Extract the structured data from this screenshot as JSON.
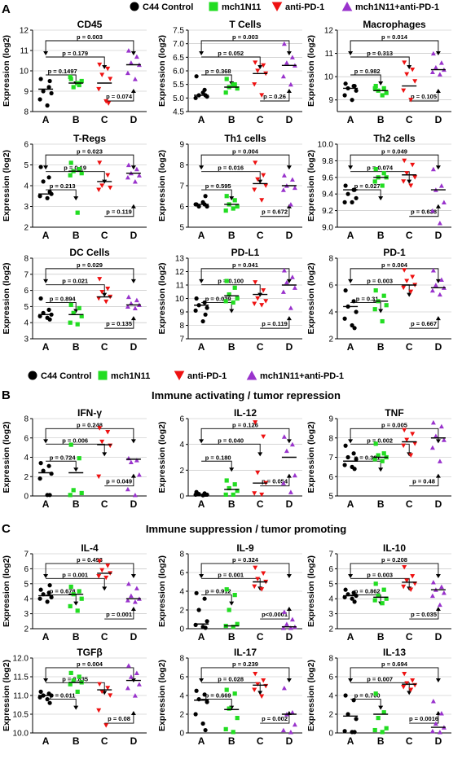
{
  "legend": {
    "items": [
      {
        "label": "C44 Control",
        "shape": "circle",
        "color": "#000000"
      },
      {
        "label": "mch1N11",
        "shape": "square",
        "color": "#22dd22"
      },
      {
        "label": "anti-PD-1",
        "shape": "tri-down",
        "color": "#ee1111"
      },
      {
        "label": "mch1N11+anti-PD-1",
        "shape": "tri-up",
        "color": "#9933cc"
      }
    ]
  },
  "sections": [
    {
      "letter": "A",
      "title": ""
    },
    {
      "letter": "B",
      "title": "Immune activating / tumor repression"
    },
    {
      "letter": "C",
      "title": "Immune suppression / tumor promoting"
    }
  ],
  "ylabel": "Expression (log2)",
  "groups": [
    "A",
    "B",
    "C",
    "D"
  ],
  "chart_data": [
    {
      "type": "scatter",
      "title": "CD45",
      "ylim": [
        8,
        12
      ],
      "yticks": [
        8,
        9,
        10,
        11,
        12
      ],
      "series": [
        {
          "values": [
            9.6,
            9.2,
            9.0,
            8.9,
            8.6,
            8.3,
            9.5
          ]
        },
        {
          "values": [
            9.6,
            9.3,
            9.2,
            9.5,
            9.7,
            9.4
          ]
        },
        {
          "values": [
            10.3,
            10.1,
            9.8,
            9.6,
            9.1,
            8.5,
            8.4
          ]
        },
        {
          "values": [
            11.0,
            10.7,
            10.4,
            10.3,
            9.9,
            9.6
          ]
        }
      ],
      "medians": [
        9.1,
        9.4,
        9.4,
        10.3
      ],
      "pvalues": [
        "p = 0.003",
        "p = 0.179",
        "p = 0.1497",
        "p = 0.074"
      ]
    },
    {
      "type": "scatter",
      "title": "T Cells",
      "ylim": [
        4.5,
        7.5
      ],
      "yticks": [
        4.5,
        5.0,
        5.5,
        6.0,
        6.5,
        7.0,
        7.5
      ],
      "series": [
        {
          "values": [
            5.8,
            5.3,
            5.1,
            5.05,
            5.0,
            5.2,
            5.1
          ]
        },
        {
          "values": [
            5.7,
            5.5,
            5.4,
            5.35,
            5.2,
            5.5
          ]
        },
        {
          "values": [
            6.3,
            6.2,
            6.0,
            5.9,
            5.5,
            5.1
          ]
        },
        {
          "values": [
            7.0,
            6.5,
            6.3,
            6.2,
            5.8,
            5.5
          ]
        }
      ],
      "medians": [
        5.1,
        5.4,
        5.9,
        6.2
      ],
      "pvalues": [
        "p = 0.003",
        "p = 0.052",
        "p = 0.368",
        "p = 0.26"
      ]
    },
    {
      "type": "scatter",
      "title": "Macrophages",
      "ylim": [
        8.5,
        12
      ],
      "yticks": [
        9,
        10,
        11,
        12
      ],
      "series": [
        {
          "values": [
            9.7,
            9.6,
            9.5,
            9.4,
            9.2,
            9.0,
            9.6
          ]
        },
        {
          "values": [
            9.6,
            9.5,
            9.4,
            9.3,
            9.5,
            9.2
          ]
        },
        {
          "values": [
            10.6,
            10.3,
            10.1,
            9.8,
            9.4,
            9.0
          ]
        },
        {
          "values": [
            11.0,
            10.6,
            10.4,
            10.3,
            10.2,
            10.1
          ]
        }
      ],
      "medians": [
        9.5,
        9.4,
        9.6,
        10.3
      ],
      "pvalues": [
        "p = 0.014",
        "p = 0.313",
        "p = 0.982",
        "p = 0.105"
      ]
    },
    {
      "type": "scatter",
      "title": "T-Regs",
      "ylim": [
        2,
        6
      ],
      "yticks": [
        2,
        3,
        4,
        5,
        6
      ],
      "series": [
        {
          "values": [
            4.9,
            4.4,
            4.2,
            3.6,
            3.5,
            3.4,
            3.7
          ]
        },
        {
          "values": [
            5.1,
            4.8,
            4.7,
            4.6,
            4.5,
            2.7
          ]
        },
        {
          "values": [
            5.1,
            4.5,
            4.0,
            3.9,
            3.8
          ]
        },
        {
          "values": [
            5.0,
            4.8,
            4.6,
            4.5,
            4.4,
            4.2
          ]
        }
      ],
      "medians": [
        3.6,
        4.7,
        4.2,
        4.6
      ],
      "pvalues": [
        "p = 0.023",
        "p = 0.19",
        "p = 0.213",
        "p = 0.119"
      ]
    },
    {
      "type": "scatter",
      "title": "Th1 cells",
      "ylim": [
        5,
        9
      ],
      "yticks": [
        5,
        6,
        7,
        8,
        9
      ],
      "series": [
        {
          "values": [
            6.1,
            6.1,
            6.0,
            6.0,
            6.1,
            6.2,
            6.5
          ]
        },
        {
          "values": [
            6.5,
            6.3,
            6.1,
            6.0,
            5.8,
            5.9
          ]
        },
        {
          "values": [
            8.1,
            7.5,
            7.3,
            7.0,
            6.8,
            6.3
          ]
        },
        {
          "values": [
            7.5,
            7.3,
            7.0,
            6.9,
            6.8,
            6.1
          ]
        }
      ],
      "medians": [
        6.1,
        6.1,
        7.1,
        7.0
      ],
      "pvalues": [
        "p = 0.004",
        "p = 0.016",
        "p = 0.595",
        "p = 0.672"
      ]
    },
    {
      "type": "scatter",
      "title": "Th2 cells",
      "ylim": [
        9,
        10
      ],
      "yticks": [
        9.0,
        9.2,
        9.4,
        9.6,
        9.8,
        10.0
      ],
      "series": [
        {
          "values": [
            9.5,
            9.45,
            9.4,
            9.35,
            9.3,
            9.3,
            9.45
          ]
        },
        {
          "values": [
            9.7,
            9.65,
            9.6,
            9.6,
            9.55,
            9.5
          ]
        },
        {
          "values": [
            9.8,
            9.75,
            9.65,
            9.6,
            9.55,
            9.5
          ]
        },
        {
          "values": [
            9.7,
            9.5,
            9.45,
            9.3,
            9.2,
            9.05
          ]
        }
      ],
      "medians": [
        9.45,
        9.6,
        9.63,
        9.45
      ],
      "pvalues": [
        "p = 0.049",
        "p = 0.074",
        "p = 0.027",
        "p = 0.638"
      ]
    },
    {
      "type": "scatter",
      "title": "DC Cells",
      "ylim": [
        3,
        8
      ],
      "yticks": [
        3,
        4,
        5,
        6,
        7,
        8
      ],
      "series": [
        {
          "values": [
            5.5,
            4.8,
            4.6,
            4.5,
            4.4,
            4.3,
            4.2
          ]
        },
        {
          "values": [
            5.1,
            4.9,
            4.6,
            4.4,
            4.0,
            3.9
          ]
        },
        {
          "values": [
            6.7,
            6.1,
            5.9,
            5.6,
            5.5,
            5.3
          ]
        },
        {
          "values": [
            5.6,
            5.4,
            5.2,
            5.1,
            5.0,
            4.9
          ]
        }
      ],
      "medians": [
        4.5,
        4.5,
        5.6,
        5.1
      ],
      "pvalues": [
        "p = 0.029",
        "p = 0.021",
        "p = 0.894",
        "p = 0.135"
      ]
    },
    {
      "type": "scatter",
      "title": "PD-L1",
      "ylim": [
        7,
        13
      ],
      "yticks": [
        7,
        8,
        9,
        10,
        11,
        12,
        13
      ],
      "series": [
        {
          "values": [
            10.0,
            9.7,
            9.5,
            9.3,
            9.1,
            8.3,
            8.8
          ]
        },
        {
          "values": [
            11.3,
            10.8,
            10.3,
            10.0,
            9.8,
            9.7
          ]
        },
        {
          "values": [
            11.2,
            10.6,
            10.0,
            9.8,
            9.6,
            9.5
          ]
        },
        {
          "values": [
            12.1,
            11.6,
            11.2,
            10.8,
            10.5,
            9.3
          ]
        }
      ],
      "medians": [
        9.5,
        10.2,
        10.3,
        11.0
      ],
      "pvalues": [
        "p = 0.041",
        "p = 0.100",
        "p = 0.039",
        "p = 0.119"
      ]
    },
    {
      "type": "scatter",
      "title": "PD-1",
      "ylim": [
        2,
        8
      ],
      "yticks": [
        2,
        4,
        6,
        8
      ],
      "series": [
        {
          "values": [
            5.6,
            4.8,
            4.4,
            4.0,
            3.5,
            3.0,
            2.8
          ]
        },
        {
          "values": [
            5.6,
            5.2,
            4.8,
            4.5,
            4.2,
            3.3
          ]
        },
        {
          "values": [
            7.1,
            6.6,
            6.3,
            6.0,
            5.8,
            5.5
          ]
        },
        {
          "values": [
            7.1,
            6.4,
            6.0,
            5.8,
            5.6,
            5.3
          ]
        }
      ],
      "medians": [
        4.4,
        4.8,
        6.0,
        5.8
      ],
      "pvalues": [
        "p = 0.004",
        "p = 0.003",
        "p = 0.31",
        "p = 0.667"
      ]
    },
    {
      "type": "scatter",
      "title": "IFN-γ",
      "ylim": [
        0,
        8
      ],
      "yticks": [
        0,
        2,
        4,
        6,
        8
      ],
      "series": [
        {
          "values": [
            3.4,
            3.1,
            2.6,
            2.3,
            1.8,
            0.1,
            0.1
          ]
        },
        {
          "values": [
            5.3,
            3.9,
            0.6,
            0.3,
            0.1
          ]
        },
        {
          "values": [
            7.0,
            6.6,
            5.6,
            5.2,
            2.0
          ]
        },
        {
          "values": [
            3.9,
            3.7,
            3.5,
            2.2,
            0.7,
            0.1
          ]
        }
      ],
      "medians": [
        2.4,
        2.4,
        5.3,
        3.8
      ],
      "pvalues": [
        "p = 0.248",
        "p = 0.006",
        "p = 0.724",
        "p = 0.049"
      ]
    },
    {
      "type": "scatter",
      "title": "IL-12",
      "ylim": [
        0,
        6
      ],
      "yticks": [
        0,
        2,
        4,
        6
      ],
      "series": [
        {
          "values": [
            0.3,
            0.2,
            0.15,
            0.1,
            0.1,
            0.05,
            0.1
          ]
        },
        {
          "values": [
            1.2,
            0.9,
            0.6,
            0.4,
            0.1,
            0.1
          ]
        },
        {
          "values": [
            5.7,
            4.6,
            1.8,
            1.0,
            0.2,
            0.1
          ]
        },
        {
          "values": [
            4.6,
            4.0,
            3.5,
            1.6,
            1.0,
            0.3
          ]
        }
      ],
      "medians": [
        0.1,
        0.5,
        1.0,
        3.0
      ],
      "pvalues": [
        "p = 0.126",
        "p = 0.040",
        "p = 0.180",
        "p = 0.054"
      ]
    },
    {
      "type": "scatter",
      "title": "TNF",
      "ylim": [
        5,
        9
      ],
      "yticks": [
        5,
        6,
        7,
        8,
        9
      ],
      "series": [
        {
          "values": [
            7.6,
            7.2,
            7.0,
            6.9,
            6.6,
            6.5,
            6.4
          ]
        },
        {
          "values": [
            7.7,
            7.2,
            7.1,
            7.0,
            6.9,
            6.8
          ]
        },
        {
          "values": [
            8.4,
            8.2,
            7.9,
            7.7,
            7.6,
            7.1
          ]
        },
        {
          "values": [
            8.8,
            8.6,
            8.1,
            7.9,
            7.5,
            6.8
          ]
        }
      ],
      "medians": [
        6.8,
        7.0,
        7.8,
        8.0
      ],
      "pvalues": [
        "p = 0.005",
        "p = 0.002",
        "p = 0.381",
        "p = 0.48"
      ]
    },
    {
      "type": "scatter",
      "title": "IL-4",
      "ylim": [
        2,
        7
      ],
      "yticks": [
        2,
        3,
        4,
        5,
        6,
        7
      ],
      "series": [
        {
          "values": [
            4.6,
            4.4,
            4.3,
            4.1,
            4.0,
            3.8,
            4.9
          ]
        },
        {
          "values": [
            4.8,
            4.5,
            4.3,
            4.0,
            3.5,
            3.2
          ]
        },
        {
          "values": [
            6.5,
            6.2,
            5.9,
            5.7,
            5.5,
            5.4
          ]
        },
        {
          "values": [
            5.0,
            4.7,
            4.2,
            4.0,
            3.9,
            3.8
          ]
        }
      ],
      "medians": [
        4.2,
        4.3,
        5.7,
        4.0
      ],
      "pvalues": [
        "p = 0.493",
        "p = 0.001",
        "p = 0.678",
        "p = 0.001"
      ]
    },
    {
      "type": "scatter",
      "title": "IL-9",
      "ylim": [
        0,
        8
      ],
      "yticks": [
        0,
        2,
        4,
        6,
        8
      ],
      "series": [
        {
          "values": [
            3.8,
            3.2,
            2.0,
            0.8,
            0.4,
            0.2,
            0.1
          ]
        },
        {
          "values": [
            4.2,
            3.6,
            2.0,
            0.5,
            0.3,
            0.2
          ]
        },
        {
          "values": [
            6.5,
            5.9,
            5.3,
            5.0,
            4.5,
            4.2
          ]
        },
        {
          "values": [
            1.8,
            1.0,
            0.5,
            0.2,
            0.1,
            0.1
          ]
        }
      ],
      "medians": [
        0.5,
        0.3,
        5.0,
        0.2
      ],
      "pvalues": [
        "p = 0.324",
        "p = 0.001",
        "p = 0.912",
        "p<0.0001"
      ]
    },
    {
      "type": "scatter",
      "title": "IL-10",
      "ylim": [
        2,
        7
      ],
      "yticks": [
        2,
        3,
        4,
        5,
        6,
        7
      ],
      "series": [
        {
          "values": [
            4.6,
            4.4,
            4.3,
            4.2,
            4.1,
            4.0,
            3.8
          ]
        },
        {
          "values": [
            5.0,
            4.6,
            4.2,
            4.0,
            3.9,
            3.7
          ]
        },
        {
          "values": [
            6.1,
            5.5,
            5.2,
            5.0,
            4.8,
            4.6
          ]
        },
        {
          "values": [
            5.1,
            4.8,
            4.6,
            4.4,
            4.2,
            3.6
          ]
        }
      ],
      "medians": [
        4.2,
        4.1,
        5.1,
        4.6
      ],
      "pvalues": [
        "p = 0.208",
        "p = 0.003",
        "p = 0.862",
        "p = 0.035"
      ]
    },
    {
      "type": "scatter",
      "title": "TGFβ",
      "ylim": [
        10,
        12
      ],
      "yticks": [
        10.0,
        10.5,
        11.0,
        11.5,
        12.0
      ],
      "series": [
        {
          "values": [
            11.1,
            11.05,
            11.0,
            11.0,
            10.95,
            10.9,
            10.8
          ]
        },
        {
          "values": [
            11.6,
            11.5,
            11.4,
            11.35,
            11.3,
            11.1
          ]
        },
        {
          "values": [
            11.3,
            11.2,
            11.1,
            11.0,
            10.6,
            10.2
          ]
        },
        {
          "values": [
            11.8,
            11.6,
            11.5,
            11.3,
            11.2,
            11.0
          ]
        }
      ],
      "medians": [
        11.0,
        11.35,
        11.15,
        11.4
      ],
      "pvalues": [
        "p = 0.004",
        "p = 0.835",
        "p = 0.011",
        "p = 0.08"
      ]
    },
    {
      "type": "scatter",
      "title": "IL-17",
      "ylim": [
        0,
        8
      ],
      "yticks": [
        0,
        2,
        4,
        6,
        8
      ],
      "series": [
        {
          "values": [
            4.5,
            4.1,
            3.6,
            3.3,
            2.0,
            1.0,
            0.3
          ]
        },
        {
          "values": [
            4.6,
            4.2,
            2.6,
            1.6,
            0.4,
            0.1
          ]
        },
        {
          "values": [
            6.3,
            5.6,
            5.2,
            5.0,
            4.6,
            3.9
          ]
        },
        {
          "values": [
            4.8,
            2.2,
            2.0,
            0.9,
            0.3,
            0.1
          ]
        }
      ],
      "medians": [
        3.5,
        2.5,
        5.1,
        2.0
      ],
      "pvalues": [
        "p = 0.239",
        "p = 0.028",
        "p = 0.669",
        "p = 0.002"
      ]
    },
    {
      "type": "scatter",
      "title": "IL-13",
      "ylim": [
        0,
        8
      ],
      "yticks": [
        0,
        2,
        4,
        6,
        8
      ],
      "series": [
        {
          "values": [
            4.0,
            3.5,
            2.0,
            1.5,
            0.2,
            0.1,
            0.1
          ]
        },
        {
          "values": [
            4.2,
            2.2,
            1.6,
            0.5,
            0.3,
            0.1
          ]
        },
        {
          "values": [
            6.3,
            5.6,
            5.3,
            5.1,
            4.9,
            4.6
          ]
        },
        {
          "values": [
            3.4,
            2.1,
            1.0,
            0.6,
            0.2,
            0.1
          ]
        }
      ],
      "medians": [
        1.8,
        2.0,
        5.2,
        0.6
      ],
      "pvalues": [
        "p = 0.694",
        "p = 0.007",
        "p = 0.700",
        "p = 0.0016"
      ]
    }
  ]
}
